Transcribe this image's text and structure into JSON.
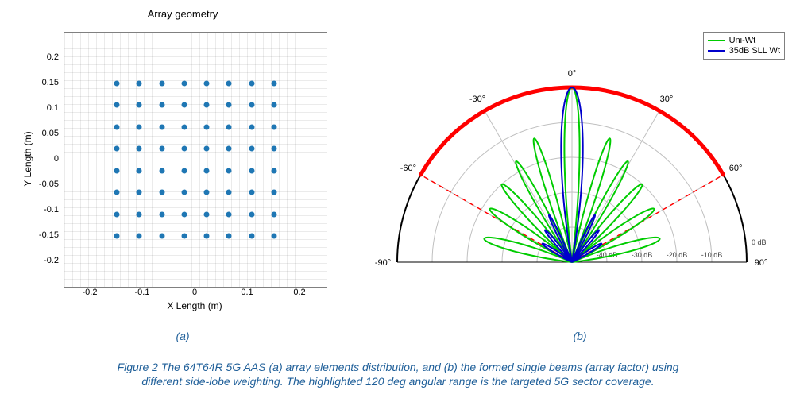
{
  "panelA": {
    "title": "Array geometry",
    "xlabel": "X Length (m)",
    "ylabel": "Y Length (m)",
    "xlim": [
      -0.25,
      0.25
    ],
    "ylim": [
      -0.25,
      0.25
    ],
    "xticks": [
      -0.2,
      -0.1,
      0,
      0.1,
      0.2
    ],
    "yticks": [
      -0.2,
      -0.15,
      -0.1,
      -0.05,
      0,
      0.05,
      0.1,
      0.15,
      0.2
    ],
    "grid_color": "#e0e0e0",
    "dot_color": "#1f77b4",
    "dot_positions_x": [
      -0.15,
      -0.1071,
      -0.0643,
      -0.0214,
      0.0214,
      0.0643,
      0.1071,
      0.15
    ],
    "dot_positions_y": [
      -0.15,
      -0.1071,
      -0.0643,
      -0.0214,
      0.0214,
      0.0643,
      0.1071,
      0.15
    ],
    "sub_label": "(a)"
  },
  "panelB": {
    "type": "polar",
    "sub_label": "(b)",
    "legend": [
      {
        "label": "Uni-Wt",
        "color": "#00cc00"
      },
      {
        "label": "35dB SLL Wt",
        "color": "#0000cc"
      }
    ],
    "arc_highlight_deg": [
      -60,
      60
    ],
    "arc_highlight_color": "#ff0000",
    "ring_color": "#c0c0c0",
    "spoke_color": "#c0c0c0",
    "sector_dash_color": "#ff0000",
    "angle_ticks_deg": [
      -90,
      -60,
      -30,
      0,
      30,
      60,
      90
    ],
    "r_max_db": 0,
    "r_min_db": -50,
    "r_ticks_db": [
      -10,
      -20,
      -30,
      -40
    ],
    "green": {
      "color": "#00cc00",
      "lobes": [
        {
          "dir": 0,
          "half": 7,
          "peak_db": 0
        },
        {
          "dir": -17,
          "half": 5,
          "peak_db": -13
        },
        {
          "dir": 17,
          "half": 5,
          "peak_db": -13
        },
        {
          "dir": -29,
          "half": 5,
          "peak_db": -17
        },
        {
          "dir": 29,
          "half": 5,
          "peak_db": -17
        },
        {
          "dir": -42,
          "half": 6,
          "peak_db": -20
        },
        {
          "dir": 42,
          "half": 6,
          "peak_db": -20
        },
        {
          "dir": -57,
          "half": 7,
          "peak_db": -22
        },
        {
          "dir": 57,
          "half": 7,
          "peak_db": -22
        },
        {
          "dir": -75,
          "half": 8,
          "peak_db": -24
        },
        {
          "dir": 75,
          "half": 8,
          "peak_db": -24
        }
      ]
    },
    "blue": {
      "color": "#0000cc",
      "lobes": [
        {
          "dir": 0,
          "half": 10,
          "peak_db": 0
        },
        {
          "dir": -26,
          "half": 4,
          "peak_db": -35
        },
        {
          "dir": 26,
          "half": 4,
          "peak_db": -35
        },
        {
          "dir": -40,
          "half": 5,
          "peak_db": -38
        },
        {
          "dir": 40,
          "half": 5,
          "peak_db": -38
        },
        {
          "dir": -58,
          "half": 6,
          "peak_db": -40
        },
        {
          "dir": 58,
          "half": 6,
          "peak_db": -40
        }
      ]
    }
  },
  "caption_line1": "Figure 2 The 64T64R 5G AAS (a) array elements distribution, and (b) the formed single beams (array factor) using",
  "caption_line2": "different side-lobe weighting. The highlighted 120 deg angular range is the targeted 5G sector coverage."
}
